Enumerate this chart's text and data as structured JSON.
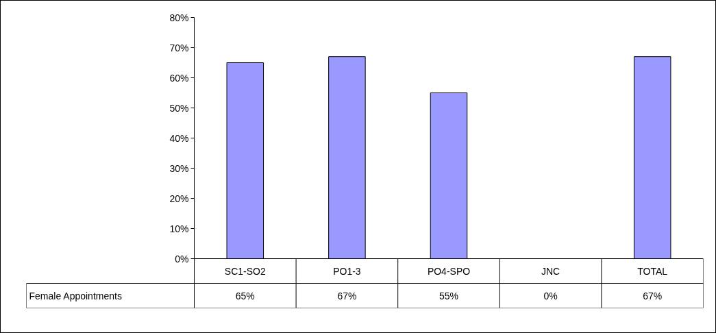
{
  "chart_data": {
    "type": "bar",
    "categories": [
      "SC1-SO2",
      "PO1-3",
      "PO4-SPO",
      "JNC",
      "TOTAL"
    ],
    "series": [
      {
        "name": "Female Appointments",
        "color": "#9999ff",
        "values": [
          65,
          67,
          55,
          0,
          67
        ],
        "value_labels": [
          "65%",
          "67%",
          "55%",
          "0%",
          "67%"
        ]
      }
    ],
    "ylim": [
      0,
      80
    ],
    "yticks": [
      {
        "value": 0,
        "label": "0%"
      },
      {
        "value": 10,
        "label": "10%"
      },
      {
        "value": 20,
        "label": "20%"
      },
      {
        "value": 30,
        "label": "30%"
      },
      {
        "value": 40,
        "label": "40%"
      },
      {
        "value": 50,
        "label": "50%"
      },
      {
        "value": 60,
        "label": "60%"
      },
      {
        "value": 70,
        "label": "70%"
      },
      {
        "value": 80,
        "label": "80%"
      }
    ],
    "grid": false
  }
}
